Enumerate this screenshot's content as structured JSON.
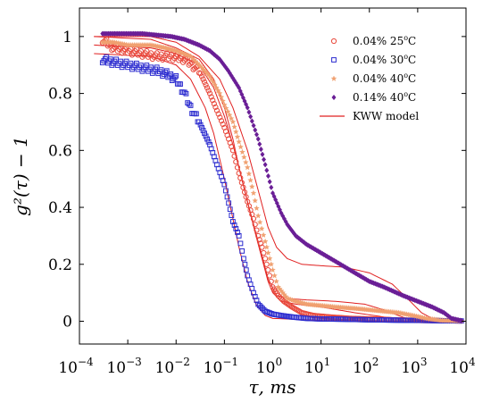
{
  "chart_data": {
    "type": "scatter",
    "xlabel": "τ, ms",
    "ylabel": "g²(τ) − 1",
    "x_scale": "log",
    "xlim": [
      0.0001,
      10000
    ],
    "ylim": [
      -0.08,
      1.1
    ],
    "x_ticks": [
      {
        "value": 0.0001,
        "base": "10",
        "exp": "−4"
      },
      {
        "value": 0.001,
        "base": "10",
        "exp": "−3"
      },
      {
        "value": 0.01,
        "base": "10",
        "exp": "−2"
      },
      {
        "value": 0.1,
        "base": "10",
        "exp": "−1"
      },
      {
        "value": 1,
        "base": "10",
        "exp": "0"
      },
      {
        "value": 10,
        "base": "10",
        "exp": "1"
      },
      {
        "value": 100,
        "base": "10",
        "exp": "2"
      },
      {
        "value": 1000,
        "base": "10",
        "exp": "3"
      },
      {
        "value": 10000,
        "base": "10",
        "exp": "4"
      }
    ],
    "y_ticks": [
      {
        "value": 0,
        "label": "0"
      },
      {
        "value": 0.2,
        "label": "0.2"
      },
      {
        "value": 0.4,
        "label": "0.4"
      },
      {
        "value": 0.6,
        "label": "0.6"
      },
      {
        "value": 0.8,
        "label": "0.8"
      },
      {
        "value": 1,
        "label": "1"
      }
    ],
    "grid": false,
    "legend_position": "top-right",
    "series": [
      {
        "name": "0.04% 25°C",
        "marker": "circle",
        "color": "#e8483b",
        "points": [
          [
            0.0003,
            0.99
          ],
          [
            0.0005,
            0.96
          ],
          [
            0.001,
            0.95
          ],
          [
            0.002,
            0.94
          ],
          [
            0.004,
            0.93
          ],
          [
            0.008,
            0.93
          ],
          [
            0.015,
            0.92
          ],
          [
            0.03,
            0.88
          ],
          [
            0.05,
            0.8
          ],
          [
            0.07,
            0.74
          ],
          [
            0.1,
            0.68
          ],
          [
            0.15,
            0.6
          ],
          [
            0.2,
            0.52
          ],
          [
            0.3,
            0.42
          ],
          [
            0.4,
            0.36
          ],
          [
            0.5,
            0.3
          ],
          [
            0.6,
            0.26
          ],
          [
            0.7,
            0.22
          ],
          [
            0.8,
            0.18
          ],
          [
            1,
            0.12
          ],
          [
            1.3,
            0.09
          ],
          [
            1.7,
            0.07
          ],
          [
            2.5,
            0.05
          ],
          [
            4,
            0.03
          ],
          [
            7,
            0.02
          ],
          [
            15,
            0.015
          ],
          [
            40,
            0.01
          ],
          [
            100,
            0.008
          ],
          [
            300,
            0.005
          ],
          [
            1000,
            0.003
          ],
          [
            3000,
            0.002
          ],
          [
            8000,
            0.001
          ]
        ]
      },
      {
        "name": "0.04% 30°C",
        "marker": "square",
        "color": "#2c2ccf",
        "points": [
          [
            0.0003,
            0.92
          ],
          [
            0.0005,
            0.91
          ],
          [
            0.001,
            0.9
          ],
          [
            0.002,
            0.89
          ],
          [
            0.004,
            0.88
          ],
          [
            0.006,
            0.87
          ],
          [
            0.01,
            0.85
          ],
          [
            0.015,
            0.8
          ],
          [
            0.02,
            0.75
          ],
          [
            0.03,
            0.7
          ],
          [
            0.05,
            0.62
          ],
          [
            0.07,
            0.55
          ],
          [
            0.1,
            0.48
          ],
          [
            0.15,
            0.35
          ],
          [
            0.2,
            0.3
          ],
          [
            0.25,
            0.22
          ],
          [
            0.3,
            0.16
          ],
          [
            0.4,
            0.1
          ],
          [
            0.5,
            0.06
          ],
          [
            0.7,
            0.035
          ],
          [
            1,
            0.025
          ],
          [
            1.5,
            0.02
          ],
          [
            2.5,
            0.015
          ],
          [
            5,
            0.01
          ],
          [
            10,
            0.008
          ],
          [
            30,
            0.007
          ],
          [
            100,
            0.005
          ],
          [
            300,
            0.004
          ],
          [
            1000,
            0.003
          ],
          [
            3000,
            0.002
          ],
          [
            8000,
            0.001
          ]
        ]
      },
      {
        "name": "0.04% 40°C",
        "marker": "star",
        "color": "#f0a070",
        "points": [
          [
            0.0003,
            0.98
          ],
          [
            0.0005,
            0.98
          ],
          [
            0.001,
            0.97
          ],
          [
            0.003,
            0.97
          ],
          [
            0.006,
            0.96
          ],
          [
            0.01,
            0.95
          ],
          [
            0.02,
            0.93
          ],
          [
            0.03,
            0.9
          ],
          [
            0.05,
            0.86
          ],
          [
            0.08,
            0.8
          ],
          [
            0.1,
            0.76
          ],
          [
            0.15,
            0.7
          ],
          [
            0.2,
            0.63
          ],
          [
            0.3,
            0.54
          ],
          [
            0.4,
            0.45
          ],
          [
            0.5,
            0.37
          ],
          [
            0.7,
            0.28
          ],
          [
            1,
            0.18
          ],
          [
            1.3,
            0.12
          ],
          [
            2,
            0.08
          ],
          [
            3,
            0.07
          ],
          [
            5,
            0.06
          ],
          [
            10,
            0.055
          ],
          [
            20,
            0.05
          ],
          [
            50,
            0.045
          ],
          [
            100,
            0.04
          ],
          [
            200,
            0.035
          ],
          [
            400,
            0.03
          ],
          [
            800,
            0.02
          ],
          [
            1500,
            0.01
          ],
          [
            3000,
            0.003
          ],
          [
            8000,
            0.001
          ]
        ]
      },
      {
        "name": "0.14% 40°C",
        "marker": "diamond",
        "color": "#6a1e96",
        "points": [
          [
            0.0003,
            1.01
          ],
          [
            0.0005,
            1.01
          ],
          [
            0.001,
            1.01
          ],
          [
            0.002,
            1.01
          ],
          [
            0.004,
            1.005
          ],
          [
            0.008,
            1.0
          ],
          [
            0.015,
            0.99
          ],
          [
            0.03,
            0.97
          ],
          [
            0.05,
            0.95
          ],
          [
            0.08,
            0.92
          ],
          [
            0.12,
            0.88
          ],
          [
            0.2,
            0.82
          ],
          [
            0.3,
            0.75
          ],
          [
            0.5,
            0.64
          ],
          [
            0.7,
            0.55
          ],
          [
            1,
            0.45
          ],
          [
            1.5,
            0.38
          ],
          [
            2,
            0.34
          ],
          [
            3,
            0.3
          ],
          [
            5,
            0.27
          ],
          [
            10,
            0.24
          ],
          [
            20,
            0.21
          ],
          [
            50,
            0.17
          ],
          [
            100,
            0.14
          ],
          [
            200,
            0.12
          ],
          [
            500,
            0.09
          ],
          [
            1000,
            0.07
          ],
          [
            2000,
            0.05
          ],
          [
            3500,
            0.03
          ],
          [
            5000,
            0.01
          ],
          [
            8000,
            0.002
          ]
        ]
      }
    ],
    "models": [
      {
        "name": "KWW model",
        "color": "#e02020",
        "points": [
          [
            0.0002,
            1.0
          ],
          [
            0.003,
            0.99
          ],
          [
            0.01,
            0.96
          ],
          [
            0.03,
            0.92
          ],
          [
            0.06,
            0.85
          ],
          [
            0.1,
            0.75
          ],
          [
            0.15,
            0.64
          ],
          [
            0.2,
            0.54
          ],
          [
            0.3,
            0.42
          ],
          [
            0.45,
            0.3
          ],
          [
            0.6,
            0.22
          ],
          [
            0.8,
            0.14
          ],
          [
            1,
            0.1
          ],
          [
            1.5,
            0.07
          ],
          [
            3,
            0.06
          ],
          [
            10,
            0.05
          ],
          [
            50,
            0.03
          ],
          [
            200,
            0.015
          ],
          [
            1000,
            0.005
          ],
          [
            3000,
            0.001
          ]
        ]
      },
      {
        "name": "KWW model",
        "color": "#e02020",
        "points": [
          [
            0.0002,
            0.94
          ],
          [
            0.003,
            0.93
          ],
          [
            0.01,
            0.9
          ],
          [
            0.02,
            0.85
          ],
          [
            0.04,
            0.75
          ],
          [
            0.06,
            0.66
          ],
          [
            0.1,
            0.5
          ],
          [
            0.15,
            0.36
          ],
          [
            0.2,
            0.26
          ],
          [
            0.3,
            0.14
          ],
          [
            0.45,
            0.06
          ],
          [
            0.7,
            0.02
          ],
          [
            1,
            0.01
          ],
          [
            5,
            0.005
          ],
          [
            100,
            0.002
          ],
          [
            3000,
            0.0
          ]
        ]
      },
      {
        "name": "KWW model",
        "color": "#e02020",
        "points": [
          [
            0.0002,
            0.97
          ],
          [
            0.003,
            0.96
          ],
          [
            0.01,
            0.94
          ],
          [
            0.03,
            0.9
          ],
          [
            0.06,
            0.82
          ],
          [
            0.1,
            0.72
          ],
          [
            0.15,
            0.62
          ],
          [
            0.2,
            0.54
          ],
          [
            0.3,
            0.42
          ],
          [
            0.5,
            0.28
          ],
          [
            0.8,
            0.15
          ],
          [
            1.2,
            0.09
          ],
          [
            2,
            0.08
          ],
          [
            5,
            0.075
          ],
          [
            20,
            0.07
          ],
          [
            80,
            0.06
          ],
          [
            200,
            0.04
          ],
          [
            400,
            0.02
          ],
          [
            700,
            0.005
          ],
          [
            1500,
            0.0
          ]
        ]
      },
      {
        "name": "KWW model",
        "color": "#e02020",
        "points": [
          [
            0.0002,
            1.0
          ],
          [
            0.003,
            1.0
          ],
          [
            0.01,
            0.98
          ],
          [
            0.03,
            0.93
          ],
          [
            0.08,
            0.85
          ],
          [
            0.15,
            0.75
          ],
          [
            0.3,
            0.6
          ],
          [
            0.5,
            0.46
          ],
          [
            0.8,
            0.33
          ],
          [
            1.2,
            0.26
          ],
          [
            2,
            0.22
          ],
          [
            4,
            0.2
          ],
          [
            10,
            0.195
          ],
          [
            30,
            0.19
          ],
          [
            100,
            0.17
          ],
          [
            300,
            0.13
          ],
          [
            700,
            0.07
          ],
          [
            1200,
            0.03
          ],
          [
            2000,
            0.01
          ],
          [
            4000,
            0.0
          ]
        ]
      }
    ],
    "legend": {
      "entries": [
        {
          "label": "0.04%  25",
          "sup": "o",
          "unit": "C",
          "marker": "circle",
          "color": "#e8483b"
        },
        {
          "label": "0.04%  30",
          "sup": "o",
          "unit": "C",
          "marker": "square",
          "color": "#2c2ccf"
        },
        {
          "label": "0.04%  40",
          "sup": "o",
          "unit": "C",
          "marker": "star",
          "color": "#f0a070"
        },
        {
          "label": "0.14%  40",
          "sup": "o",
          "unit": "C",
          "marker": "diamond",
          "color": "#6a1e96"
        },
        {
          "label": "KWW model",
          "sup": "",
          "unit": "",
          "marker": "line",
          "color": "#e02020"
        }
      ]
    }
  }
}
